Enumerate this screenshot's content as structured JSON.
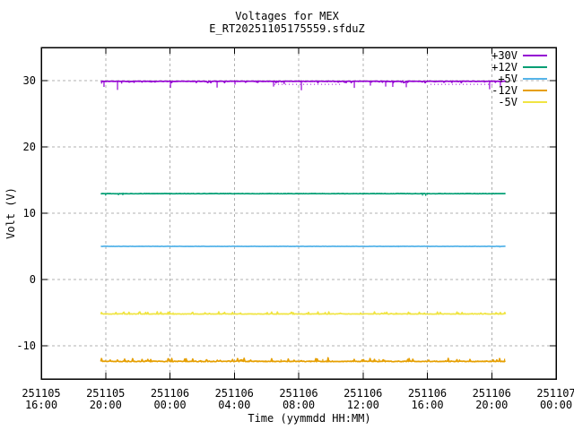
{
  "chart_data": {
    "type": "line",
    "title": "Voltages for MEX",
    "subtitle": "E_RT20251105175559.sfduZ",
    "xlabel": "Time (yymmdd HH:MM)",
    "ylabel": "Volt (V)",
    "background_color": "#ffffff",
    "axis_color": "#000000",
    "grid_color": "#b0b0b0",
    "grid": true,
    "legend_position": "top-right-inside",
    "ylim": [
      -15,
      35
    ],
    "y_ticks": [
      30,
      20,
      10,
      0,
      -10
    ],
    "x_ticks": [
      {
        "date": "251105",
        "time": "16:00"
      },
      {
        "date": "251105",
        "time": "20:00"
      },
      {
        "date": "251106",
        "time": "00:00"
      },
      {
        "date": "251106",
        "time": "04:00"
      },
      {
        "date": "251106",
        "time": "08:00"
      },
      {
        "date": "251106",
        "time": "12:00"
      },
      {
        "date": "251106",
        "time": "16:00"
      },
      {
        "date": "251106",
        "time": "20:00"
      },
      {
        "date": "251107",
        "time": "00:00"
      }
    ],
    "x_span_hours": 32,
    "data_start_hour_offset": 3.7,
    "data_end_hour_offset": 28.9,
    "series": [
      {
        "name": "+30V",
        "color": "#9400d3",
        "value": 29.9,
        "noise_v": 0.12,
        "noise_bias": "down",
        "spikes": [
          [
            3.75,
            -0.35
          ],
          [
            3.9,
            -0.85
          ],
          [
            4.74,
            -1.3
          ],
          [
            5.0,
            -0.35
          ],
          [
            8.03,
            -1.0
          ],
          [
            10.93,
            -0.95
          ],
          [
            12.04,
            -0.5
          ],
          [
            14.44,
            -0.8
          ],
          [
            15.1,
            -0.45
          ],
          [
            16.17,
            -1.35
          ],
          [
            19.46,
            -1.0
          ],
          [
            20.46,
            -0.65
          ],
          [
            21.41,
            -0.8
          ],
          [
            21.85,
            -0.85
          ],
          [
            22.69,
            -0.9
          ],
          [
            27.87,
            -1.2
          ],
          [
            28.54,
            -0.7
          ]
        ],
        "dot_bands": [
          [
            14.5,
            18.6,
            -0.45
          ],
          [
            24.2,
            28.2,
            -0.45
          ]
        ]
      },
      {
        "name": "+12V",
        "color": "#009e73",
        "value": 12.95,
        "noise_v": 0.05,
        "noise_bias": "none",
        "spikes": [
          [
            4.0,
            -0.3
          ],
          [
            4.8,
            -0.25
          ],
          [
            5.07,
            -0.25
          ],
          [
            23.7,
            -0.3
          ],
          [
            23.9,
            -0.35
          ]
        ],
        "dot_bands": []
      },
      {
        "name": "+5V",
        "color": "#56b4e9",
        "value": 5.0,
        "noise_v": 0.04,
        "noise_bias": "none",
        "spikes": [
          [
            22.2,
            -0.15
          ],
          [
            28.5,
            -0.18
          ]
        ],
        "dot_bands": []
      },
      {
        "name": "-12V",
        "color": "#e69f00",
        "value": -12.35,
        "noise_v": 0.28,
        "noise_bias": "up",
        "spikes": [
          [
            14.9,
            0.3
          ],
          [
            17.5,
            0.35
          ],
          [
            21.0,
            0.35
          ],
          [
            26.0,
            0.3
          ],
          [
            28.8,
            0.4
          ]
        ],
        "dot_bands": []
      },
      {
        "name": "-5V",
        "color": "#f0e442",
        "value": -5.2,
        "noise_v": 0.18,
        "noise_bias": "up",
        "spikes": [
          [
            8.2,
            0.25
          ],
          [
            16.5,
            0.2
          ]
        ],
        "dot_bands": []
      }
    ]
  }
}
